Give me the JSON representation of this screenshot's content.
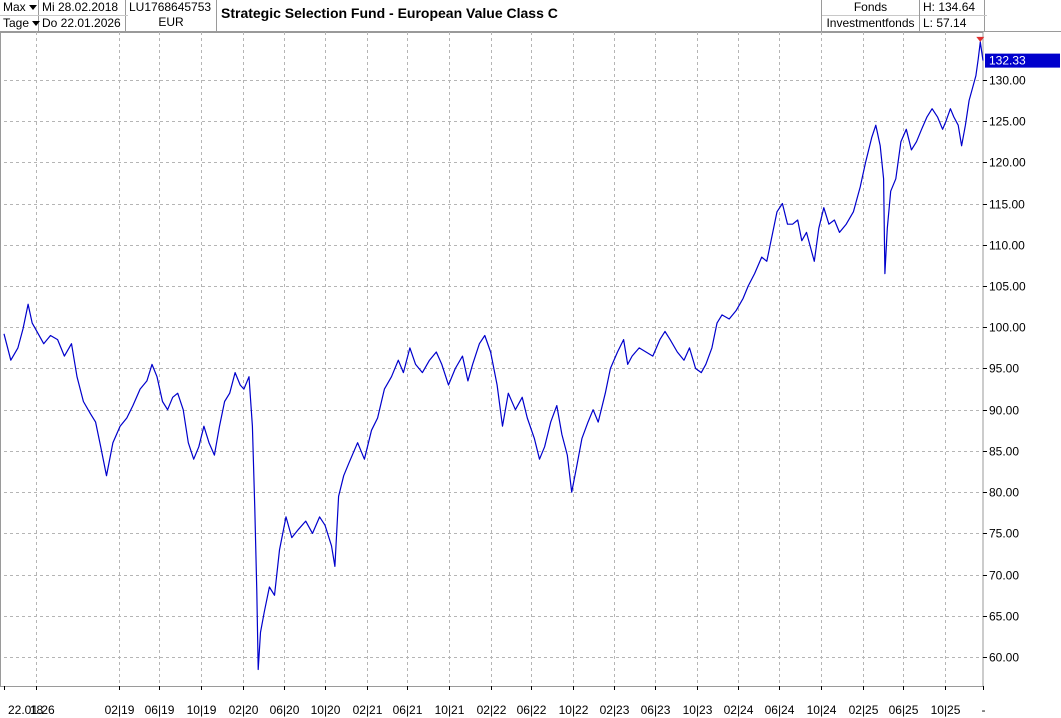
{
  "header": {
    "range_label": "Max",
    "interval_label": "Tage",
    "date_from": "Mi 28.02.2018",
    "date_to": "Do 22.01.2026",
    "isin": "LU1768645753",
    "currency": "EUR",
    "fund_name": "Strategic Selection Fund - European Value Class C",
    "type_line1": "Fonds",
    "type_line2": "Investmentfonds",
    "high_label": "H: 134.64",
    "low_label": "L: 57.14"
  },
  "chart_data": {
    "type": "line",
    "title": "Strategic Selection Fund - European Value Class C",
    "xlabel": "",
    "ylabel": "",
    "ylim": [
      56.5,
      135.8
    ],
    "yticks": [
      60,
      65,
      70,
      75,
      80,
      85,
      90,
      95,
      100,
      105,
      110,
      115,
      120,
      125,
      130
    ],
    "ytick_labels": [
      "60.00",
      "65.00",
      "70.00",
      "75.00",
      "80.00",
      "85.00",
      "90.00",
      "95.00",
      "100.00",
      "105.00",
      "110.00",
      "115.00",
      "120.00",
      "125.00",
      "130.00"
    ],
    "xrange": [
      "2018-02-28",
      "2026-01-22"
    ],
    "xtick_labels": [
      {
        "label": "22.01.26",
        "date": "2018-02-28"
      },
      {
        "label": "18",
        "date": "2018-06-01"
      },
      {
        "label": "02|19",
        "date": "2019-02-01"
      },
      {
        "label": "06|19",
        "date": "2019-06-01"
      },
      {
        "label": "10|19",
        "date": "2019-10-01"
      },
      {
        "label": "02|20",
        "date": "2020-02-01"
      },
      {
        "label": "06|20",
        "date": "2020-06-01"
      },
      {
        "label": "10|20",
        "date": "2020-10-01"
      },
      {
        "label": "02|21",
        "date": "2021-02-01"
      },
      {
        "label": "06|21",
        "date": "2021-06-01"
      },
      {
        "label": "10|21",
        "date": "2021-10-01"
      },
      {
        "label": "02|22",
        "date": "2022-02-01"
      },
      {
        "label": "06|22",
        "date": "2022-06-01"
      },
      {
        "label": "10|22",
        "date": "2022-10-01"
      },
      {
        "label": "02|23",
        "date": "2023-02-01"
      },
      {
        "label": "06|23",
        "date": "2023-06-01"
      },
      {
        "label": "10|23",
        "date": "2023-10-01"
      },
      {
        "label": "02|24",
        "date": "2024-02-01"
      },
      {
        "label": "06|24",
        "date": "2024-06-01"
      },
      {
        "label": "10|24",
        "date": "2024-10-01"
      },
      {
        "label": "02|25",
        "date": "2025-02-01"
      },
      {
        "label": "06|25",
        "date": "2025-06-01"
      },
      {
        "label": "10|25",
        "date": "2025-10-01"
      },
      {
        "label": "-",
        "date": "2026-01-22"
      }
    ],
    "grid": true,
    "last_value": 132.33,
    "last_value_label": "132.33",
    "series": [
      {
        "name": "",
        "color": "#0000cc",
        "points": [
          [
            "2018-02-28",
            99.2
          ],
          [
            "2018-03-20",
            96.0
          ],
          [
            "2018-04-10",
            97.5
          ],
          [
            "2018-04-25",
            99.8
          ],
          [
            "2018-05-10",
            102.8
          ],
          [
            "2018-05-22",
            100.5
          ],
          [
            "2018-06-05",
            99.5
          ],
          [
            "2018-06-25",
            98.0
          ],
          [
            "2018-07-15",
            99.0
          ],
          [
            "2018-08-05",
            98.5
          ],
          [
            "2018-08-25",
            96.5
          ],
          [
            "2018-09-15",
            98.0
          ],
          [
            "2018-10-01",
            94.0
          ],
          [
            "2018-10-20",
            91.0
          ],
          [
            "2018-11-10",
            89.5
          ],
          [
            "2018-11-25",
            88.5
          ],
          [
            "2018-12-10",
            85.5
          ],
          [
            "2018-12-27",
            82.0
          ],
          [
            "2019-01-15",
            86.0
          ],
          [
            "2019-02-05",
            88.0
          ],
          [
            "2019-02-25",
            89.0
          ],
          [
            "2019-03-15",
            90.5
          ],
          [
            "2019-04-05",
            92.5
          ],
          [
            "2019-04-25",
            93.5
          ],
          [
            "2019-05-10",
            95.5
          ],
          [
            "2019-05-25",
            94.0
          ],
          [
            "2019-06-10",
            91.0
          ],
          [
            "2019-06-25",
            90.0
          ],
          [
            "2019-07-10",
            91.5
          ],
          [
            "2019-07-25",
            92.0
          ],
          [
            "2019-08-10",
            90.0
          ],
          [
            "2019-08-25",
            86.0
          ],
          [
            "2019-09-10",
            84.0
          ],
          [
            "2019-09-25",
            85.5
          ],
          [
            "2019-10-10",
            88.0
          ],
          [
            "2019-10-25",
            86.0
          ],
          [
            "2019-11-10",
            84.5
          ],
          [
            "2019-11-25",
            88.0
          ],
          [
            "2019-12-10",
            91.0
          ],
          [
            "2019-12-25",
            92.0
          ],
          [
            "2020-01-10",
            94.5
          ],
          [
            "2020-01-25",
            93.0
          ],
          [
            "2020-02-05",
            92.5
          ],
          [
            "2020-02-20",
            94.0
          ],
          [
            "2020-03-01",
            88.0
          ],
          [
            "2020-03-08",
            78.0
          ],
          [
            "2020-03-14",
            68.0
          ],
          [
            "2020-03-18",
            58.5
          ],
          [
            "2020-03-25",
            63.0
          ],
          [
            "2020-04-05",
            65.5
          ],
          [
            "2020-04-20",
            68.5
          ],
          [
            "2020-05-05",
            67.5
          ],
          [
            "2020-05-20",
            73.0
          ],
          [
            "2020-06-08",
            77.0
          ],
          [
            "2020-06-25",
            74.5
          ],
          [
            "2020-07-15",
            75.5
          ],
          [
            "2020-08-05",
            76.5
          ],
          [
            "2020-08-25",
            75.0
          ],
          [
            "2020-09-15",
            77.0
          ],
          [
            "2020-10-01",
            76.0
          ],
          [
            "2020-10-20",
            73.5
          ],
          [
            "2020-10-30",
            71.0
          ],
          [
            "2020-11-10",
            79.5
          ],
          [
            "2020-11-25",
            82.0
          ],
          [
            "2020-12-10",
            83.5
          ],
          [
            "2021-01-05",
            86.0
          ],
          [
            "2021-01-25",
            84.0
          ],
          [
            "2021-02-15",
            87.5
          ],
          [
            "2021-03-05",
            89.0
          ],
          [
            "2021-03-25",
            92.5
          ],
          [
            "2021-04-15",
            94.0
          ],
          [
            "2021-05-05",
            96.0
          ],
          [
            "2021-05-20",
            94.5
          ],
          [
            "2021-06-08",
            97.5
          ],
          [
            "2021-06-25",
            95.5
          ],
          [
            "2021-07-15",
            94.5
          ],
          [
            "2021-08-05",
            96.0
          ],
          [
            "2021-08-25",
            97.0
          ],
          [
            "2021-09-10",
            95.5
          ],
          [
            "2021-09-30",
            93.0
          ],
          [
            "2021-10-20",
            95.0
          ],
          [
            "2021-11-10",
            96.5
          ],
          [
            "2021-11-26",
            93.5
          ],
          [
            "2021-12-10",
            95.5
          ],
          [
            "2021-12-30",
            98.0
          ],
          [
            "2022-01-15",
            99.0
          ],
          [
            "2022-02-01",
            97.0
          ],
          [
            "2022-02-20",
            93.0
          ],
          [
            "2022-03-08",
            88.0
          ],
          [
            "2022-03-25",
            92.0
          ],
          [
            "2022-04-15",
            90.0
          ],
          [
            "2022-05-05",
            91.5
          ],
          [
            "2022-05-20",
            89.0
          ],
          [
            "2022-06-10",
            86.5
          ],
          [
            "2022-06-25",
            84.0
          ],
          [
            "2022-07-10",
            85.5
          ],
          [
            "2022-07-28",
            88.5
          ],
          [
            "2022-08-15",
            90.5
          ],
          [
            "2022-08-30",
            87.0
          ],
          [
            "2022-09-15",
            84.5
          ],
          [
            "2022-09-28",
            80.0
          ],
          [
            "2022-10-12",
            83.0
          ],
          [
            "2022-10-28",
            86.5
          ],
          [
            "2022-11-15",
            88.5
          ],
          [
            "2022-11-30",
            90.0
          ],
          [
            "2022-12-15",
            88.5
          ],
          [
            "2023-01-05",
            92.0
          ],
          [
            "2023-01-20",
            95.0
          ],
          [
            "2023-02-10",
            97.0
          ],
          [
            "2023-02-28",
            98.5
          ],
          [
            "2023-03-12",
            95.5
          ],
          [
            "2023-03-25",
            96.5
          ],
          [
            "2023-04-15",
            97.5
          ],
          [
            "2023-05-05",
            97.0
          ],
          [
            "2023-05-25",
            96.5
          ],
          [
            "2023-06-15",
            98.5
          ],
          [
            "2023-06-30",
            99.5
          ],
          [
            "2023-07-15",
            98.5
          ],
          [
            "2023-08-05",
            97.0
          ],
          [
            "2023-08-25",
            96.0
          ],
          [
            "2023-09-10",
            97.5
          ],
          [
            "2023-09-28",
            95.0
          ],
          [
            "2023-10-15",
            94.5
          ],
          [
            "2023-10-28",
            95.5
          ],
          [
            "2023-11-15",
            97.5
          ],
          [
            "2023-11-30",
            100.5
          ],
          [
            "2023-12-15",
            101.5
          ],
          [
            "2024-01-05",
            101.0
          ],
          [
            "2024-01-25",
            102.0
          ],
          [
            "2024-02-15",
            103.5
          ],
          [
            "2024-03-01",
            105.0
          ],
          [
            "2024-03-20",
            106.5
          ],
          [
            "2024-04-10",
            108.5
          ],
          [
            "2024-04-25",
            108.0
          ],
          [
            "2024-05-10",
            111.0
          ],
          [
            "2024-05-25",
            114.0
          ],
          [
            "2024-06-10",
            115.0
          ],
          [
            "2024-06-25",
            112.5
          ],
          [
            "2024-07-10",
            112.5
          ],
          [
            "2024-07-25",
            113.0
          ],
          [
            "2024-08-06",
            110.5
          ],
          [
            "2024-08-20",
            111.5
          ],
          [
            "2024-09-05",
            109.0
          ],
          [
            "2024-09-12",
            108.0
          ],
          [
            "2024-09-25",
            112.0
          ],
          [
            "2024-10-10",
            114.5
          ],
          [
            "2024-10-25",
            112.5
          ],
          [
            "2024-11-10",
            113.0
          ],
          [
            "2024-11-25",
            111.5
          ],
          [
            "2024-12-15",
            112.5
          ],
          [
            "2025-01-05",
            114.0
          ],
          [
            "2025-01-25",
            117.0
          ],
          [
            "2025-02-10",
            120.0
          ],
          [
            "2025-02-28",
            123.0
          ],
          [
            "2025-03-12",
            124.5
          ],
          [
            "2025-03-25",
            122.0
          ],
          [
            "2025-04-04",
            118.0
          ],
          [
            "2025-04-08",
            106.5
          ],
          [
            "2025-04-15",
            112.0
          ],
          [
            "2025-04-25",
            116.5
          ],
          [
            "2025-05-10",
            118.0
          ],
          [
            "2025-05-25",
            122.5
          ],
          [
            "2025-06-10",
            124.0
          ],
          [
            "2025-06-25",
            121.5
          ],
          [
            "2025-07-10",
            122.5
          ],
          [
            "2025-07-25",
            124.0
          ],
          [
            "2025-08-10",
            125.5
          ],
          [
            "2025-08-25",
            126.5
          ],
          [
            "2025-09-10",
            125.5
          ],
          [
            "2025-09-25",
            124.0
          ],
          [
            "2025-10-05",
            125.0
          ],
          [
            "2025-10-18",
            126.5
          ],
          [
            "2025-10-28",
            125.5
          ],
          [
            "2025-11-10",
            124.5
          ],
          [
            "2025-11-20",
            122.0
          ],
          [
            "2025-12-01",
            124.5
          ],
          [
            "2025-12-12",
            127.5
          ],
          [
            "2025-12-22",
            129.0
          ],
          [
            "2026-01-01",
            130.5
          ],
          [
            "2026-01-08",
            132.5
          ],
          [
            "2026-01-14",
            134.6
          ],
          [
            "2026-01-18",
            133.5
          ],
          [
            "2026-01-22",
            132.33
          ]
        ]
      }
    ]
  }
}
